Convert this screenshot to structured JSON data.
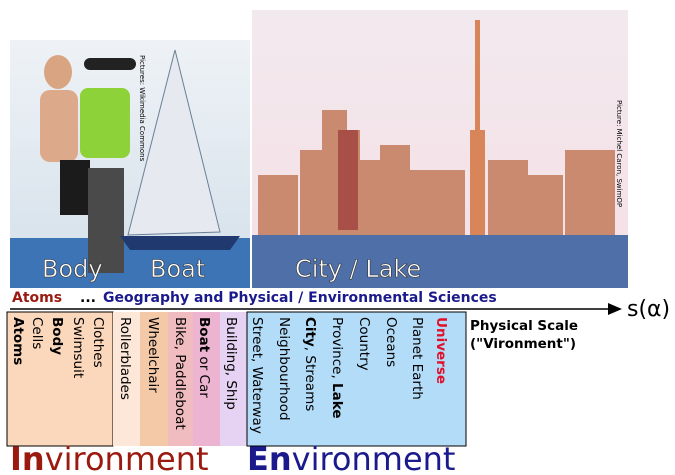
{
  "photos": {
    "labels": [
      "Body",
      "Boat",
      "City / Lake"
    ],
    "credits": [
      "Pictures: Wikimedia Commons",
      "Picture: Michel Caron, SwimOP"
    ]
  },
  "header": {
    "start": "Atoms",
    "ellipsis": "...",
    "field": "Geography and Physical / Environmental Sciences"
  },
  "axis": {
    "label": "s(α)",
    "title": [
      "Physical Scale",
      "(\"Vironment\")"
    ]
  },
  "scale_items": [
    [
      {
        "text": "Atoms",
        "bold": true
      }
    ],
    [
      {
        "text": "Cells"
      }
    ],
    [
      {
        "text": "Body",
        "bold": true
      }
    ],
    [
      {
        "text": "Swimsuit"
      }
    ],
    [
      {
        "text": "Clothes"
      }
    ],
    [
      {
        "text": "Rollerblades"
      }
    ],
    [
      {
        "text": "Wheelchair"
      }
    ],
    [
      {
        "text": "Bike, Paddleboat"
      }
    ],
    [
      {
        "text": "Boat",
        "bold": true
      },
      {
        "text": " or Car"
      }
    ],
    [
      {
        "text": "Building, Ship"
      }
    ],
    [
      {
        "text": "Street, Waterway"
      }
    ],
    [
      {
        "text": "Neighbourhood"
      }
    ],
    [
      {
        "text": "City",
        "bold": true
      },
      {
        "text": ", Streams"
      }
    ],
    [
      {
        "text": "Province, "
      },
      {
        "text": "Lake",
        "bold": true
      }
    ],
    [
      {
        "text": "Country"
      }
    ],
    [
      {
        "text": "Oceans"
      }
    ],
    [
      {
        "text": "Planet Earth"
      }
    ],
    [
      {
        "text": "Universe",
        "bold": true,
        "color": "#e0102a"
      }
    ]
  ],
  "footer": {
    "inner": {
      "prefix": "In",
      "rest": "vironment",
      "color": "#9b1a10"
    },
    "outer": {
      "prefix": "En",
      "rest": "vironment",
      "color": "#1a1a8c"
    }
  }
}
